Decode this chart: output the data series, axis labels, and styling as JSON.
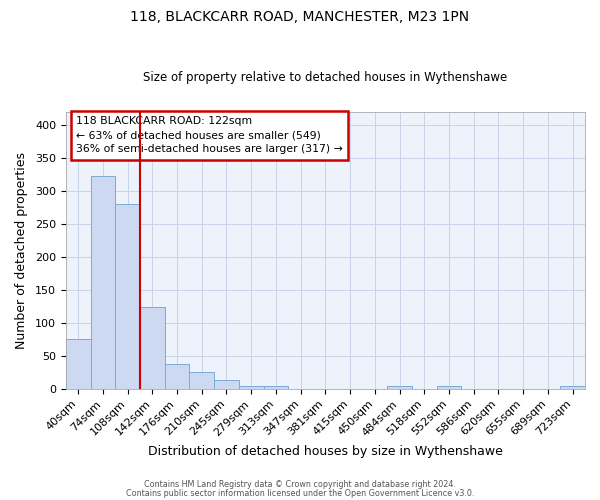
{
  "title1": "118, BLACKCARR ROAD, MANCHESTER, M23 1PN",
  "title2": "Size of property relative to detached houses in Wythenshawe",
  "xlabel": "Distribution of detached houses by size in Wythenshawe",
  "ylabel": "Number of detached properties",
  "categories": [
    "40sqm",
    "74sqm",
    "108sqm",
    "142sqm",
    "176sqm",
    "210sqm",
    "245sqm",
    "279sqm",
    "313sqm",
    "347sqm",
    "381sqm",
    "415sqm",
    "450sqm",
    "484sqm",
    "518sqm",
    "552sqm",
    "586sqm",
    "620sqm",
    "655sqm",
    "689sqm",
    "723sqm"
  ],
  "values": [
    75,
    323,
    280,
    124,
    38,
    25,
    13,
    4,
    4,
    0,
    0,
    0,
    0,
    5,
    0,
    4,
    0,
    0,
    0,
    0,
    4
  ],
  "bar_color": "#ccd9f0",
  "bar_edge_color": "#7aaad4",
  "red_line_index": 3,
  "annotation_text1": "118 BLACKCARR ROAD: 122sqm",
  "annotation_text2": "← 63% of detached houses are smaller (549)",
  "annotation_text3": "36% of semi-detached houses are larger (317) →",
  "annotation_box_color": "white",
  "annotation_box_edge_color": "#cc0000",
  "red_line_color": "#cc0000",
  "grid_color": "#c8d4e8",
  "background_color": "#eef2fb",
  "ylim": [
    0,
    420
  ],
  "yticks": [
    0,
    50,
    100,
    150,
    200,
    250,
    300,
    350,
    400
  ],
  "footer1": "Contains HM Land Registry data © Crown copyright and database right 2024.",
  "footer2": "Contains public sector information licensed under the Open Government Licence v3.0."
}
